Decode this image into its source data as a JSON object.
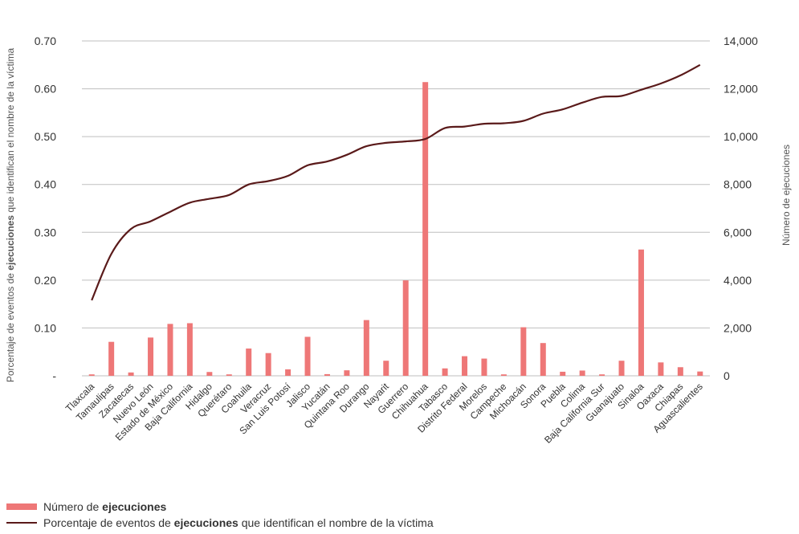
{
  "colors": {
    "bar": "#ee7777",
    "line": "#5a1a1a",
    "grid": "#bfbfbf"
  },
  "chart_data": {
    "type": "bar",
    "categories": [
      "Tlaxcala",
      "Tamaulipas",
      "Zacatecas",
      "Nuevo León",
      "Estado de México",
      "Baja California",
      "Hidalgo",
      "Querétaro",
      "Coahuila",
      "Veracruz",
      "San Luis Potosí",
      "Jalisco",
      "Yucatán",
      "Quintana Roo",
      "Durango",
      "Nayarit",
      "Guerrero",
      "Chihuahua",
      "Tabasco",
      "Distrito Federal",
      "Morelos",
      "Campeche",
      "Michoacán",
      "Sonora",
      "Puebla",
      "Colima",
      "Baja California Sur",
      "Guanajuato",
      "Sinaloa",
      "Oaxaca",
      "Chiapas",
      "Aguascalientes"
    ],
    "series": [
      {
        "name_pre": "Número de ",
        "name_bold": "ejecuciones",
        "axis": "right",
        "kind": "bar",
        "values": [
          60,
          1420,
          140,
          1600,
          2170,
          2200,
          160,
          60,
          1140,
          950,
          270,
          1630,
          70,
          230,
          2330,
          630,
          3990,
          12280,
          310,
          820,
          720,
          60,
          2030,
          1370,
          170,
          220,
          60,
          630,
          5280,
          560,
          360,
          180
        ]
      },
      {
        "name_pre": "Porcentaje de eventos de ",
        "name_bold": "ejecuciones",
        "name_post": " que identifican el nombre de la víctima",
        "axis": "left",
        "kind": "line",
        "values": [
          0.158,
          0.255,
          0.307,
          0.323,
          0.343,
          0.362,
          0.37,
          0.378,
          0.4,
          0.407,
          0.418,
          0.44,
          0.448,
          0.462,
          0.48,
          0.487,
          0.49,
          0.495,
          0.518,
          0.521,
          0.527,
          0.528,
          0.533,
          0.548,
          0.557,
          0.571,
          0.583,
          0.585,
          0.598,
          0.611,
          0.628,
          0.65
        ]
      }
    ],
    "y_left": {
      "label_pre": "Porcentaje de eventos de ",
      "label_bold": "ejecuciones",
      "label_post": " que identifican el nombre de la víctima",
      "ylim": [
        0,
        0.7
      ],
      "ticks": [
        "-",
        "0.10",
        "0.20",
        "0.30",
        "0.40",
        "0.50",
        "0.60",
        "0.70"
      ]
    },
    "y_right": {
      "label": "Número de ejecuciones",
      "ylim": [
        0,
        14000
      ],
      "ticks": [
        "0",
        "2,000",
        "4,000",
        "6,000",
        "8,000",
        "10,000",
        "12,000",
        "14,000"
      ]
    },
    "grid": true,
    "legend_position": "bottom-left"
  }
}
